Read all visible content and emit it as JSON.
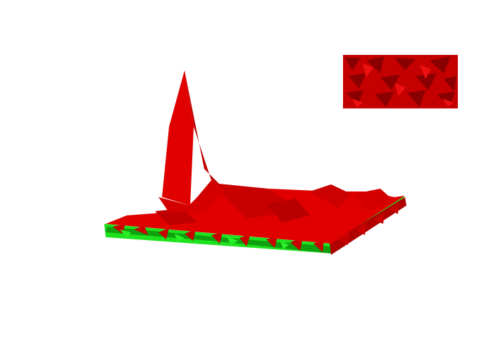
{
  "scene": {
    "background_color": "#ffffff",
    "surface_color_main": "#e00000",
    "surface_color_dark": "#a00000",
    "underside_color": "#1ee21e",
    "underside_color_dark": "#0f9f0f"
  },
  "inset": {
    "base_color": "#c40000",
    "cell_color_dark": "#8a0000",
    "cell_color_light": "#ee1010"
  }
}
